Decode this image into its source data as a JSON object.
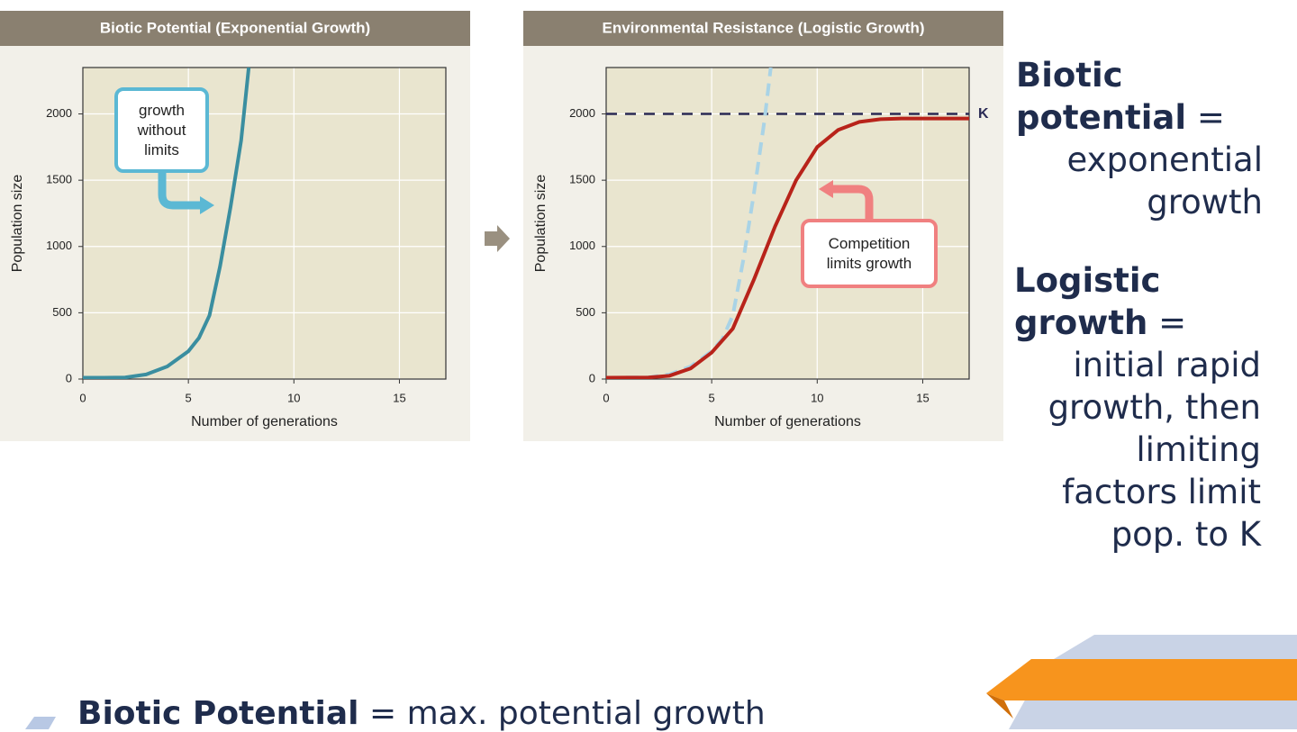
{
  "chart_data": [
    {
      "type": "line",
      "title": "Biotic Potential  (Exponential Growth)",
      "x_label": "Number of generations",
      "y_label": "Population size",
      "xlim": [
        0,
        17.2
      ],
      "xticks": [
        0,
        5,
        10,
        15
      ],
      "ylim": [
        0,
        2350
      ],
      "yticks": [
        0,
        500,
        1000,
        1500,
        2000
      ],
      "grid": true,
      "series": [
        {
          "color": "#3a8ea0",
          "line_style": "solid",
          "x": [
            0,
            1,
            2,
            3,
            4,
            5,
            5.5,
            6,
            6.5,
            7,
            7.5,
            7.86
          ],
          "values": [
            10,
            10,
            12,
            35,
            95,
            210,
            310,
            480,
            850,
            1300,
            1800,
            2350
          ]
        }
      ],
      "annotations": [
        "growth without limits"
      ]
    },
    {
      "type": "line",
      "title": "Environmental Resistance  (Logistic Growth)",
      "x_label": "Number of generations",
      "y_label": "Population size",
      "xlim": [
        0,
        17.2
      ],
      "xticks": [
        0,
        5,
        10,
        15
      ],
      "ylim": [
        0,
        2350
      ],
      "yticks": [
        0,
        500,
        1000,
        1500,
        2000
      ],
      "grid": true,
      "reference_line": {
        "value": 2000,
        "label": "K",
        "color": "#2a2a55"
      },
      "series": [
        {
          "color": "#a9d3e6",
          "line_style": "dashed",
          "x": [
            0,
            2,
            3,
            4,
            5,
            5.5,
            6,
            6.5,
            7,
            7.5,
            7.8
          ],
          "values": [
            10,
            12,
            35,
            95,
            210,
            300,
            480,
            900,
            1400,
            1950,
            2350
          ]
        },
        {
          "color": "#b8231a",
          "line_style": "solid",
          "x": [
            0,
            2,
            3,
            4,
            5,
            6,
            7,
            8,
            9,
            10,
            11,
            12,
            13,
            14,
            15,
            17.2
          ],
          "values": [
            10,
            12,
            25,
            80,
            200,
            380,
            750,
            1150,
            1500,
            1750,
            1880,
            1940,
            1960,
            1965,
            1965,
            1965
          ]
        }
      ],
      "annotations": [
        "Competition limits growth"
      ]
    }
  ],
  "equals": "=",
  "notes": [
    {
      "term": "Biotic potential",
      "definition": "exponential growth"
    },
    {
      "term": "Logistic growth",
      "definition": "initial rapid growth, then limiting factors limit pop. to K"
    }
  ],
  "bullets": [
    {
      "term": "Biotic Potential",
      "definition": "max. potential growth"
    }
  ]
}
